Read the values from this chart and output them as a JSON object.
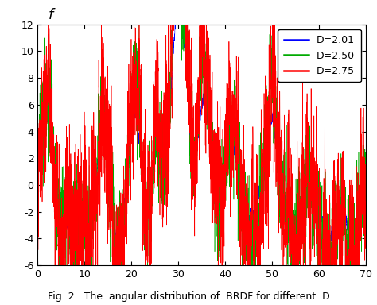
{
  "title_label": "$f$",
  "caption": "Fig. 2.  The  angular distribution of  BRDF for different  D",
  "xlim": [
    0,
    70
  ],
  "ylim": [
    -6,
    12
  ],
  "yticks": [
    -6,
    -4,
    -2,
    0,
    2,
    4,
    6,
    8,
    10,
    12
  ],
  "xticks": [
    0,
    10,
    20,
    30,
    40,
    50,
    60,
    70
  ],
  "series": [
    {
      "label": "D=2.01",
      "color": "#0000FF",
      "D": 2.01
    },
    {
      "label": "D=2.50",
      "color": "#00AA00",
      "D": 2.5
    },
    {
      "label": "D=2.75",
      "color": "#FF0000",
      "D": 2.75
    }
  ],
  "n_points": 3000,
  "seed": 42
}
